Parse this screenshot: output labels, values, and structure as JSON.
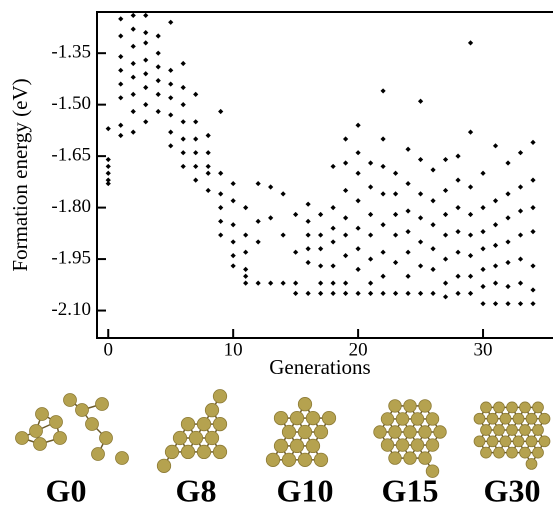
{
  "chart_data": {
    "type": "scatter",
    "xlabel": "Generations",
    "ylabel": "Formation energy (eV)",
    "xlim": [
      -0.9,
      35.6
    ],
    "ylim": [
      -2.18,
      -1.23
    ],
    "xticks": [
      0,
      10,
      20,
      30
    ],
    "yticks": [
      -1.35,
      {
        "value": -1.5,
        "label": "-1.50"
      },
      -1.65,
      {
        "value": -1.8,
        "label": "-1.80"
      },
      -1.95,
      {
        "value": -2.1,
        "label": "-2.10"
      }
    ],
    "color": "#000000",
    "x": [
      0,
      0,
      0,
      0,
      0,
      0,
      1,
      1,
      1,
      1,
      1,
      1,
      1,
      1,
      2,
      2,
      2,
      2,
      2,
      2,
      2,
      2,
      3,
      3,
      3,
      3,
      3,
      3,
      3,
      3,
      4,
      4,
      4,
      4,
      4,
      4,
      5,
      5,
      5,
      5,
      5,
      5,
      5,
      6,
      6,
      6,
      6,
      6,
      6,
      6,
      7,
      7,
      7,
      7,
      7,
      7,
      8,
      8,
      8,
      8,
      8,
      9,
      9,
      9,
      9,
      9,
      9,
      10,
      10,
      10,
      10,
      10,
      10,
      11,
      11,
      11,
      11,
      11,
      11,
      12,
      12,
      12,
      12,
      13,
      13,
      13,
      14,
      14,
      14,
      15,
      15,
      15,
      15,
      16,
      16,
      16,
      16,
      16,
      16,
      17,
      17,
      17,
      17,
      17,
      17,
      18,
      18,
      18,
      18,
      18,
      18,
      18,
      19,
      19,
      19,
      19,
      19,
      19,
      19,
      19,
      20,
      20,
      20,
      20,
      20,
      20,
      20,
      20,
      21,
      21,
      21,
      21,
      21,
      21,
      21,
      22,
      22,
      22,
      22,
      22,
      22,
      22,
      22,
      23,
      23,
      23,
      23,
      23,
      23,
      24,
      24,
      24,
      24,
      24,
      24,
      24,
      25,
      25,
      25,
      25,
      25,
      25,
      25,
      26,
      26,
      26,
      26,
      26,
      26,
      27,
      27,
      27,
      27,
      27,
      27,
      27,
      28,
      28,
      28,
      28,
      28,
      28,
      28,
      29,
      29,
      29,
      29,
      29,
      29,
      29,
      29,
      30,
      30,
      30,
      30,
      30,
      30,
      30,
      31,
      31,
      31,
      31,
      31,
      31,
      31,
      32,
      32,
      32,
      32,
      32,
      32,
      32,
      33,
      33,
      33,
      33,
      33,
      33,
      33,
      34,
      34,
      34,
      34,
      34,
      34,
      34
    ],
    "values": [
      -1.57,
      -1.66,
      -1.68,
      -1.7,
      -1.72,
      -1.73,
      -1.25,
      -1.3,
      -1.36,
      -1.4,
      -1.44,
      -1.48,
      -1.56,
      -1.59,
      -1.24,
      -1.28,
      -1.33,
      -1.38,
      -1.42,
      -1.47,
      -1.52,
      -1.58,
      -1.24,
      -1.29,
      -1.32,
      -1.37,
      -1.41,
      -1.45,
      -1.5,
      -1.55,
      -1.3,
      -1.35,
      -1.39,
      -1.43,
      -1.47,
      -1.52,
      -1.26,
      -1.4,
      -1.44,
      -1.48,
      -1.53,
      -1.58,
      -1.62,
      -1.38,
      -1.45,
      -1.5,
      -1.55,
      -1.6,
      -1.64,
      -1.68,
      -1.47,
      -1.55,
      -1.6,
      -1.64,
      -1.68,
      -1.72,
      -1.59,
      -1.64,
      -1.68,
      -1.7,
      -1.75,
      -1.52,
      -1.7,
      -1.76,
      -1.8,
      -1.84,
      -1.88,
      -1.73,
      -1.78,
      -1.85,
      -1.9,
      -1.94,
      -1.97,
      -1.8,
      -1.88,
      -1.93,
      -1.98,
      -2.0,
      -2.02,
      -1.73,
      -1.84,
      -1.9,
      -2.02,
      -1.74,
      -1.83,
      -2.02,
      -1.76,
      -1.88,
      -2.02,
      -1.82,
      -1.93,
      -2.02,
      -2.05,
      -1.79,
      -1.84,
      -1.88,
      -1.92,
      -1.96,
      -2.05,
      -1.82,
      -1.88,
      -1.92,
      -1.97,
      -2.02,
      -2.05,
      -1.68,
      -1.8,
      -1.86,
      -1.9,
      -1.97,
      -2.02,
      -2.05,
      -1.6,
      -1.67,
      -1.75,
      -1.83,
      -1.88,
      -1.94,
      -2.02,
      -2.05,
      -1.56,
      -1.64,
      -1.7,
      -1.78,
      -1.86,
      -1.92,
      -1.98,
      -2.05,
      -1.67,
      -1.74,
      -1.82,
      -1.88,
      -1.95,
      -2.02,
      -2.05,
      -1.46,
      -1.6,
      -1.68,
      -1.76,
      -1.85,
      -1.93,
      -2.0,
      -2.05,
      -1.7,
      -1.76,
      -1.82,
      -1.88,
      -1.96,
      -2.05,
      -1.63,
      -1.73,
      -1.81,
      -1.87,
      -1.93,
      -2.0,
      -2.05,
      -1.49,
      -1.66,
      -1.76,
      -1.83,
      -1.9,
      -1.97,
      -2.05,
      -1.69,
      -1.78,
      -1.85,
      -1.92,
      -1.98,
      -2.05,
      -1.66,
      -1.75,
      -1.82,
      -1.88,
      -1.95,
      -2.02,
      -2.06,
      -1.65,
      -1.72,
      -1.8,
      -1.87,
      -1.93,
      -2.0,
      -2.05,
      -1.32,
      -1.58,
      -1.74,
      -1.82,
      -1.88,
      -1.94,
      -2.0,
      -2.05,
      -1.7,
      -1.8,
      -1.87,
      -1.92,
      -1.98,
      -2.03,
      -2.08,
      -1.62,
      -1.78,
      -1.85,
      -1.91,
      -1.97,
      -2.02,
      -2.08,
      -1.67,
      -1.76,
      -1.83,
      -1.9,
      -1.96,
      -2.03,
      -2.08,
      -1.64,
      -1.74,
      -1.81,
      -1.88,
      -1.95,
      -2.02,
      -2.08,
      -1.61,
      -1.72,
      -1.8,
      -1.87,
      -1.97,
      -2.04,
      -2.08
    ],
    "structure_labels": [
      "G0",
      "G8",
      "G10",
      "G15",
      "G30"
    ]
  }
}
